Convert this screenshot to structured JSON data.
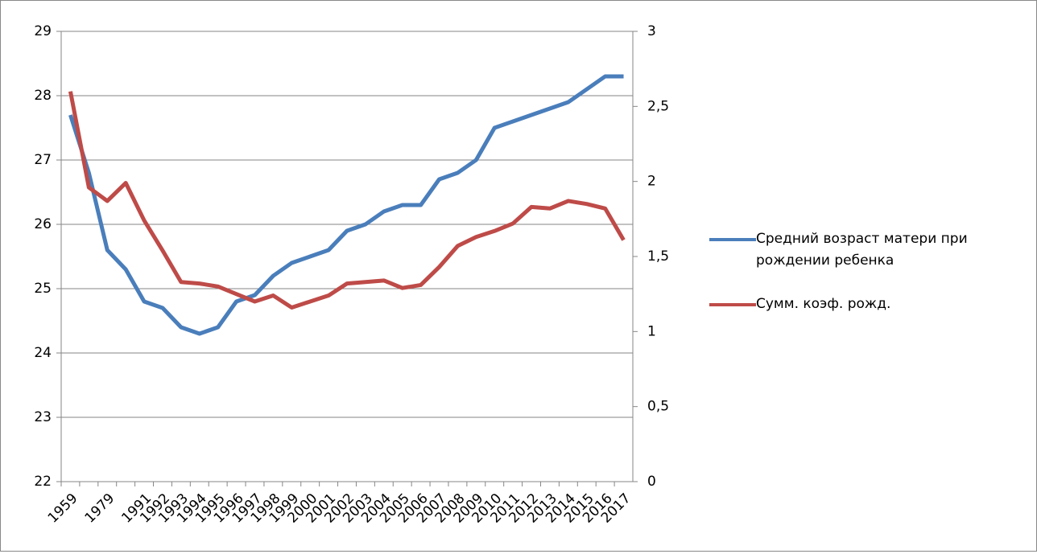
{
  "chart_data": {
    "type": "line",
    "categories": [
      "1959",
      null,
      "1979",
      null,
      "1991",
      "1992",
      "1993",
      "1994",
      "1995",
      "1996",
      "1997",
      "1998",
      "1999",
      "2000",
      "2001",
      "2002",
      "2003",
      "2004",
      "2005",
      "2006",
      "2007",
      "2008",
      "2009",
      "2010",
      "2011",
      "2012",
      "2013",
      "2014",
      "2015",
      "2016",
      "2017"
    ],
    "series": [
      {
        "name": "Средний возраст матери при рождении ребенка",
        "color": "#4a7ebb",
        "values": [
          27.7,
          26.8,
          25.6,
          25.3,
          24.8,
          24.7,
          24.4,
          24.3,
          24.4,
          24.8,
          24.9,
          25.2,
          25.4,
          25.5,
          25.6,
          25.9,
          26.0,
          26.2,
          26.3,
          26.3,
          26.7,
          26.8,
          27.0,
          27.5,
          27.6,
          27.7,
          27.8,
          27.9,
          28.1,
          28.3,
          28.3
        ]
      },
      {
        "name": "Сумм. коэф. рожд.",
        "color": "#be4b48",
        "axis": "y2",
        "values": [
          2.6,
          1.96,
          1.87,
          1.99,
          1.74,
          1.54,
          1.33,
          1.32,
          1.3,
          1.25,
          1.2,
          1.24,
          1.16,
          1.2,
          1.24,
          1.32,
          1.33,
          1.34,
          1.29,
          1.31,
          1.43,
          1.57,
          1.63,
          1.67,
          1.72,
          1.83,
          1.82,
          1.87,
          1.85,
          1.82,
          1.61
        ]
      }
    ],
    "ylim": [
      22,
      29
    ],
    "yticks": [
      22,
      23,
      24,
      25,
      26,
      27,
      28,
      29
    ],
    "y2lim": [
      0,
      3
    ],
    "y2ticks": [
      0,
      {
        "value": 0.5,
        "label": "0,5"
      },
      1,
      {
        "value": 1.5,
        "label": "1,5"
      },
      2,
      {
        "value": 2.5,
        "label": "2,5"
      },
      3
    ],
    "grid": true,
    "legend": "right"
  }
}
